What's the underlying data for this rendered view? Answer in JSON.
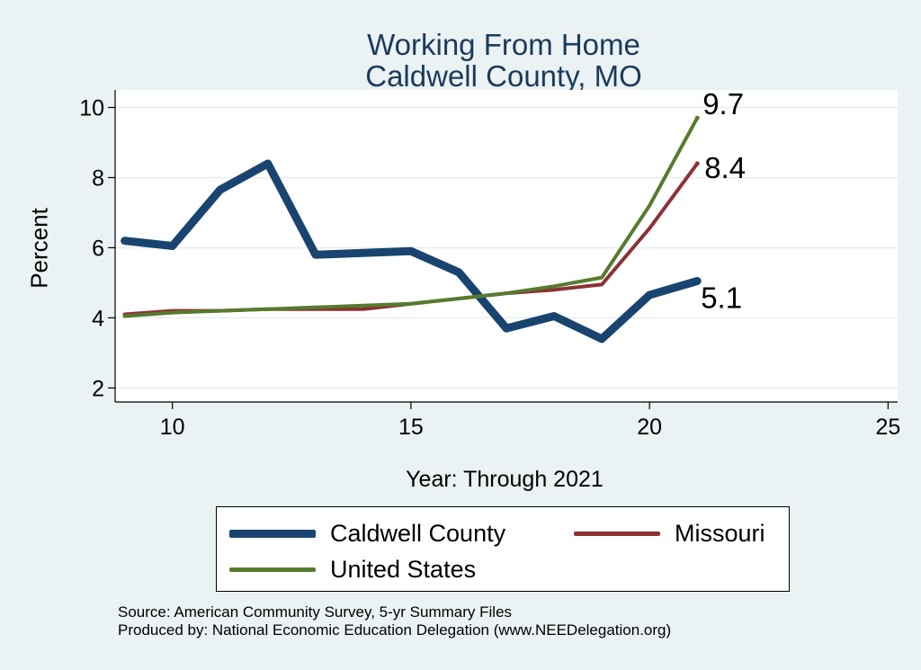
{
  "chart_data": {
    "type": "line",
    "title": [
      "Working From Home",
      "Caldwell County, MO"
    ],
    "xlabel": "Year: Through 2021",
    "ylabel": "Percent",
    "xlim": [
      8.8,
      25.2
    ],
    "ylim": [
      1.6,
      10.5
    ],
    "xticks": [
      10,
      15,
      20,
      25
    ],
    "yticks": [
      2,
      4,
      6,
      8,
      10
    ],
    "grid": "horizontal",
    "legend_position": "bottom",
    "series": [
      {
        "name": "Caldwell County",
        "color": "#1a4470",
        "width": 9,
        "x": [
          9,
          10,
          11,
          12,
          13,
          14,
          15,
          16,
          17,
          18,
          19,
          20,
          21
        ],
        "y": [
          6.2,
          6.05,
          7.65,
          8.4,
          5.8,
          5.85,
          5.9,
          5.3,
          3.7,
          4.05,
          3.4,
          4.65,
          5.05
        ],
        "end_label": "5.1"
      },
      {
        "name": "Missouri",
        "color": "#8c3134",
        "width": 4,
        "x": [
          9,
          10,
          11,
          12,
          13,
          14,
          15,
          16,
          17,
          18,
          19,
          20,
          21
        ],
        "y": [
          4.1,
          4.2,
          4.2,
          4.25,
          4.25,
          4.25,
          4.4,
          4.55,
          4.7,
          4.8,
          4.95,
          6.55,
          8.4
        ],
        "end_label": "8.4"
      },
      {
        "name": "United States",
        "color": "#567b2e",
        "width": 4,
        "x": [
          9,
          10,
          11,
          12,
          13,
          14,
          15,
          16,
          17,
          18,
          19,
          20,
          21
        ],
        "y": [
          4.05,
          4.15,
          4.2,
          4.25,
          4.3,
          4.35,
          4.4,
          4.55,
          4.7,
          4.9,
          5.15,
          7.2,
          9.7
        ],
        "end_label": "9.7"
      }
    ]
  },
  "notes": {
    "source": "Source: American Community Survey, 5-yr Summary Files",
    "producer": "Produced by: National Economic Education Delegation (www.NEEDelegation.org)"
  }
}
